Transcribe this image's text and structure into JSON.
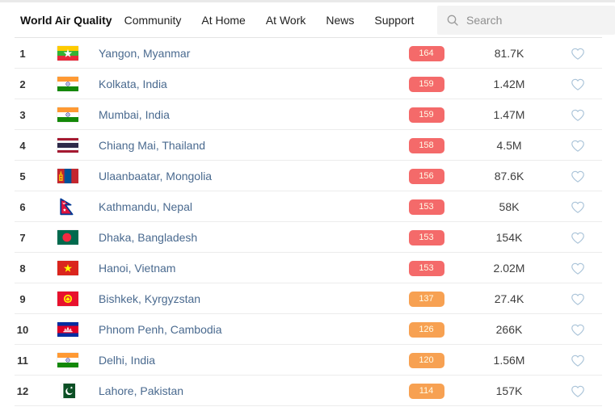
{
  "nav": {
    "items": [
      {
        "label": "World Air Quality",
        "active": true
      },
      {
        "label": "Community",
        "active": false
      },
      {
        "label": "At Home",
        "active": false
      },
      {
        "label": "At Work",
        "active": false
      },
      {
        "label": "News",
        "active": false
      },
      {
        "label": "Support",
        "active": false
      }
    ],
    "search_placeholder": "Search"
  },
  "colors": {
    "aqi_unhealthy": "#f46a6a",
    "aqi_unhealthy_sensitive": "#f7a152",
    "badge_text": "#fffce8",
    "city_link": "#4a6a8f",
    "heart": "#a9c3d8"
  },
  "ranking": {
    "rows": [
      {
        "rank": "1",
        "flag": "myanmar",
        "city": "Yangon, Myanmar",
        "aqi": "164",
        "level": "unhealthy",
        "followers": "81.7K"
      },
      {
        "rank": "2",
        "flag": "india",
        "city": "Kolkata, India",
        "aqi": "159",
        "level": "unhealthy",
        "followers": "1.42M"
      },
      {
        "rank": "3",
        "flag": "india",
        "city": "Mumbai, India",
        "aqi": "159",
        "level": "unhealthy",
        "followers": "1.47M"
      },
      {
        "rank": "4",
        "flag": "thailand",
        "city": "Chiang Mai, Thailand",
        "aqi": "158",
        "level": "unhealthy",
        "followers": "4.5M"
      },
      {
        "rank": "5",
        "flag": "mongolia",
        "city": "Ulaanbaatar, Mongolia",
        "aqi": "156",
        "level": "unhealthy",
        "followers": "87.6K"
      },
      {
        "rank": "6",
        "flag": "nepal",
        "city": "Kathmandu, Nepal",
        "aqi": "153",
        "level": "unhealthy",
        "followers": "58K"
      },
      {
        "rank": "7",
        "flag": "bangladesh",
        "city": "Dhaka, Bangladesh",
        "aqi": "153",
        "level": "unhealthy",
        "followers": "154K"
      },
      {
        "rank": "8",
        "flag": "vietnam",
        "city": "Hanoi, Vietnam",
        "aqi": "153",
        "level": "unhealthy",
        "followers": "2.02M"
      },
      {
        "rank": "9",
        "flag": "kyrgyzstan",
        "city": "Bishkek, Kyrgyzstan",
        "aqi": "137",
        "level": "unhealthy_sensitive",
        "followers": "27.4K"
      },
      {
        "rank": "10",
        "flag": "cambodia",
        "city": "Phnom Penh, Cambodia",
        "aqi": "126",
        "level": "unhealthy_sensitive",
        "followers": "266K"
      },
      {
        "rank": "11",
        "flag": "india",
        "city": "Delhi, India",
        "aqi": "120",
        "level": "unhealthy_sensitive",
        "followers": "1.56M"
      },
      {
        "rank": "12",
        "flag": "pakistan",
        "city": "Lahore, Pakistan",
        "aqi": "114",
        "level": "unhealthy_sensitive",
        "followers": "157K"
      }
    ]
  }
}
